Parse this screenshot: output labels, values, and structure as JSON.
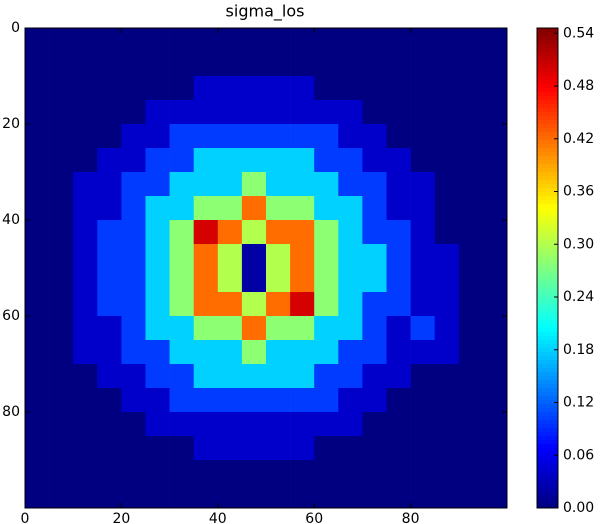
{
  "chart_data": {
    "type": "heatmap",
    "title": "sigma_los",
    "colormap": "jet",
    "x": [
      2.5,
      7.5,
      12.5,
      17.5,
      22.5,
      27.5,
      32.5,
      37.5,
      42.5,
      47.5,
      52.5,
      57.5,
      62.5,
      67.5,
      72.5,
      77.5,
      82.5,
      87.5,
      92.5,
      97.5
    ],
    "y": [
      2.5,
      7.5,
      12.5,
      17.5,
      22.5,
      27.5,
      32.5,
      37.5,
      42.5,
      47.5,
      52.5,
      57.5,
      62.5,
      67.5,
      72.5,
      77.5,
      82.5,
      87.5,
      92.5,
      97.5
    ],
    "z": [
      [
        0,
        0,
        0,
        0,
        0,
        0,
        0,
        0,
        0,
        0,
        0,
        0,
        0,
        0,
        0,
        0,
        0,
        0,
        0,
        0
      ],
      [
        0,
        0,
        0,
        0,
        0,
        0,
        0,
        0,
        0,
        0,
        0,
        0,
        0,
        0,
        0,
        0,
        0,
        0,
        0,
        0
      ],
      [
        0,
        0,
        0,
        0,
        0,
        0,
        0,
        0.04,
        0.04,
        0.04,
        0.04,
        0.04,
        0,
        0,
        0,
        0,
        0,
        0,
        0,
        0
      ],
      [
        0,
        0,
        0,
        0,
        0,
        0.04,
        0.04,
        0.04,
        0.04,
        0.04,
        0.04,
        0.04,
        0.04,
        0.04,
        0,
        0,
        0,
        0,
        0,
        0
      ],
      [
        0,
        0,
        0,
        0,
        0.04,
        0.04,
        0.1,
        0.1,
        0.1,
        0.1,
        0.1,
        0.1,
        0.1,
        0.04,
        0.04,
        0,
        0,
        0,
        0,
        0
      ],
      [
        0,
        0,
        0,
        0.04,
        0.04,
        0.1,
        0.1,
        0.18,
        0.18,
        0.18,
        0.18,
        0.18,
        0.1,
        0.1,
        0.04,
        0.04,
        0,
        0,
        0,
        0
      ],
      [
        0,
        0,
        0.04,
        0.04,
        0.1,
        0.1,
        0.18,
        0.18,
        0.18,
        0.28,
        0.18,
        0.18,
        0.18,
        0.1,
        0.1,
        0.04,
        0.04,
        0,
        0,
        0
      ],
      [
        0,
        0,
        0.04,
        0.04,
        0.1,
        0.18,
        0.18,
        0.28,
        0.28,
        0.42,
        0.28,
        0.28,
        0.18,
        0.18,
        0.1,
        0.04,
        0.04,
        0,
        0,
        0
      ],
      [
        0,
        0,
        0.04,
        0.1,
        0.1,
        0.18,
        0.28,
        0.5,
        0.42,
        0.3,
        0.42,
        0.42,
        0.28,
        0.18,
        0.1,
        0.1,
        0.04,
        0,
        0,
        0
      ],
      [
        0,
        0,
        0.04,
        0.1,
        0.1,
        0.18,
        0.28,
        0.42,
        0.3,
        0.02,
        0.3,
        0.42,
        0.28,
        0.18,
        0.18,
        0.1,
        0.04,
        0.04,
        0,
        0
      ],
      [
        0,
        0,
        0.04,
        0.1,
        0.1,
        0.18,
        0.28,
        0.42,
        0.3,
        0.02,
        0.3,
        0.42,
        0.28,
        0.18,
        0.18,
        0.1,
        0.04,
        0.04,
        0,
        0
      ],
      [
        0,
        0,
        0.04,
        0.1,
        0.1,
        0.18,
        0.28,
        0.42,
        0.42,
        0.3,
        0.42,
        0.5,
        0.28,
        0.18,
        0.1,
        0.1,
        0.04,
        0.04,
        0,
        0
      ],
      [
        0,
        0,
        0.04,
        0.04,
        0.1,
        0.18,
        0.18,
        0.28,
        0.28,
        0.42,
        0.28,
        0.28,
        0.18,
        0.18,
        0.1,
        0.04,
        0.1,
        0.04,
        0,
        0
      ],
      [
        0,
        0,
        0.04,
        0.04,
        0.1,
        0.1,
        0.18,
        0.18,
        0.18,
        0.28,
        0.18,
        0.18,
        0.18,
        0.1,
        0.1,
        0.04,
        0.04,
        0.04,
        0,
        0
      ],
      [
        0,
        0,
        0,
        0.04,
        0.04,
        0.1,
        0.1,
        0.18,
        0.18,
        0.18,
        0.18,
        0.18,
        0.1,
        0.1,
        0.04,
        0.04,
        0,
        0,
        0,
        0
      ],
      [
        0,
        0,
        0,
        0,
        0.04,
        0.04,
        0.1,
        0.1,
        0.1,
        0.1,
        0.1,
        0.1,
        0.1,
        0.04,
        0.04,
        0,
        0,
        0,
        0,
        0
      ],
      [
        0,
        0,
        0,
        0,
        0,
        0.04,
        0.04,
        0.04,
        0.04,
        0.04,
        0.04,
        0.04,
        0.04,
        0.04,
        0,
        0,
        0,
        0,
        0,
        0
      ],
      [
        0,
        0,
        0,
        0,
        0,
        0,
        0,
        0.04,
        0.04,
        0.04,
        0.04,
        0.04,
        0,
        0,
        0,
        0,
        0,
        0,
        0,
        0
      ],
      [
        0,
        0,
        0,
        0,
        0,
        0,
        0,
        0,
        0,
        0,
        0,
        0,
        0,
        0,
        0,
        0,
        0,
        0,
        0,
        0
      ],
      [
        0,
        0,
        0,
        0,
        0,
        0,
        0,
        0,
        0,
        0,
        0,
        0,
        0,
        0,
        0,
        0,
        0,
        0,
        0,
        0
      ]
    ],
    "xlim": [
      0,
      100
    ],
    "ylim": [
      0,
      100
    ],
    "y_inverted": true,
    "xticks": [
      0,
      20,
      40,
      60,
      80
    ],
    "yticks": [
      0,
      20,
      40,
      60,
      80
    ],
    "clim": [
      0,
      0.546
    ],
    "cticks": [
      {
        "value": 0,
        "label": "0.00"
      },
      0.06,
      0.12,
      0.18,
      0.24,
      {
        "value": 0.3,
        "label": "0.30"
      },
      0.36,
      0.42,
      0.48,
      0.54
    ]
  }
}
